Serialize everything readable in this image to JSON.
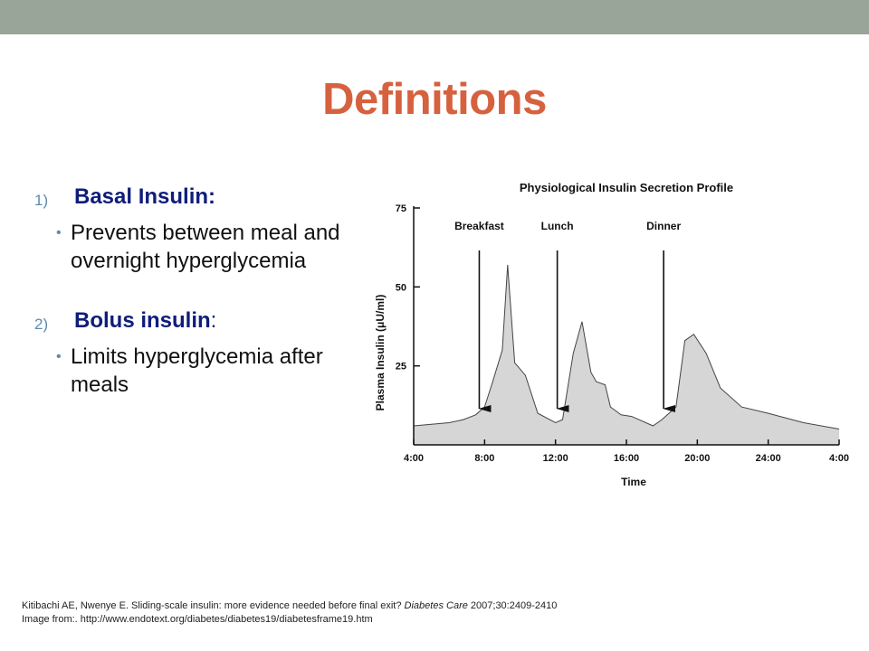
{
  "colors": {
    "top_bar": "#98a598",
    "title": "#d6613f",
    "heading": "#0f1d7a",
    "marker": "#5a8ab0"
  },
  "title": "Definitions",
  "items": [
    {
      "number": "1)",
      "heading": "Basal Insulin:",
      "bullet": "Prevents between meal and overnight hyperglycemia"
    },
    {
      "number": "2)",
      "heading": "Bolus insulin",
      "heading_suffix": ":",
      "bullet": "Limits hyperglycemia after meals"
    }
  ],
  "footnote": {
    "citation_prefix": "Kitibachi AE, Nwenye E. Sliding-scale insulin: more evidence needed before final exit? ",
    "journal": "Diabetes Care",
    "citation_suffix": " 2007;30:2409-2410",
    "image_source": "Image from:. http://www.endotext.org/diabetes/diabetes19/diabetesframe19.htm"
  },
  "chart_data": {
    "type": "area",
    "title": "Physiological Insulin Secretion Profile",
    "xlabel": "Time",
    "ylabel": "Plasma Insulin (μU/ml)",
    "x_ticks": [
      "4:00",
      "8:00",
      "12:00",
      "16:00",
      "20:00",
      "24:00",
      "4:00"
    ],
    "y_ticks": [
      25,
      50,
      75
    ],
    "xlim_hours": [
      4,
      28
    ],
    "ylim": [
      0,
      75
    ],
    "x_hours": [
      4,
      5,
      6,
      6.8,
      7.5,
      8,
      8.4,
      9,
      9.3,
      9.7,
      10.3,
      11,
      12,
      12.4,
      13,
      13.5,
      14,
      14.3,
      14.8,
      15.1,
      15.7,
      16.3,
      17.5,
      18,
      18.8,
      19.3,
      19.8,
      20.5,
      21.3,
      22.5,
      24,
      26,
      28
    ],
    "y_values": [
      6,
      6.5,
      7,
      8,
      9.5,
      12,
      19,
      30,
      57,
      26,
      22,
      10,
      7,
      8,
      29,
      39,
      23,
      20,
      19,
      12,
      9.5,
      9,
      6,
      8,
      12,
      33,
      35,
      29,
      18,
      12,
      10,
      7,
      5
    ],
    "annotations": [
      {
        "label": "Breakfast",
        "x_hour": 7.7
      },
      {
        "label": "Lunch",
        "x_hour": 12.1
      },
      {
        "label": "Dinner",
        "x_hour": 18.1
      }
    ]
  }
}
